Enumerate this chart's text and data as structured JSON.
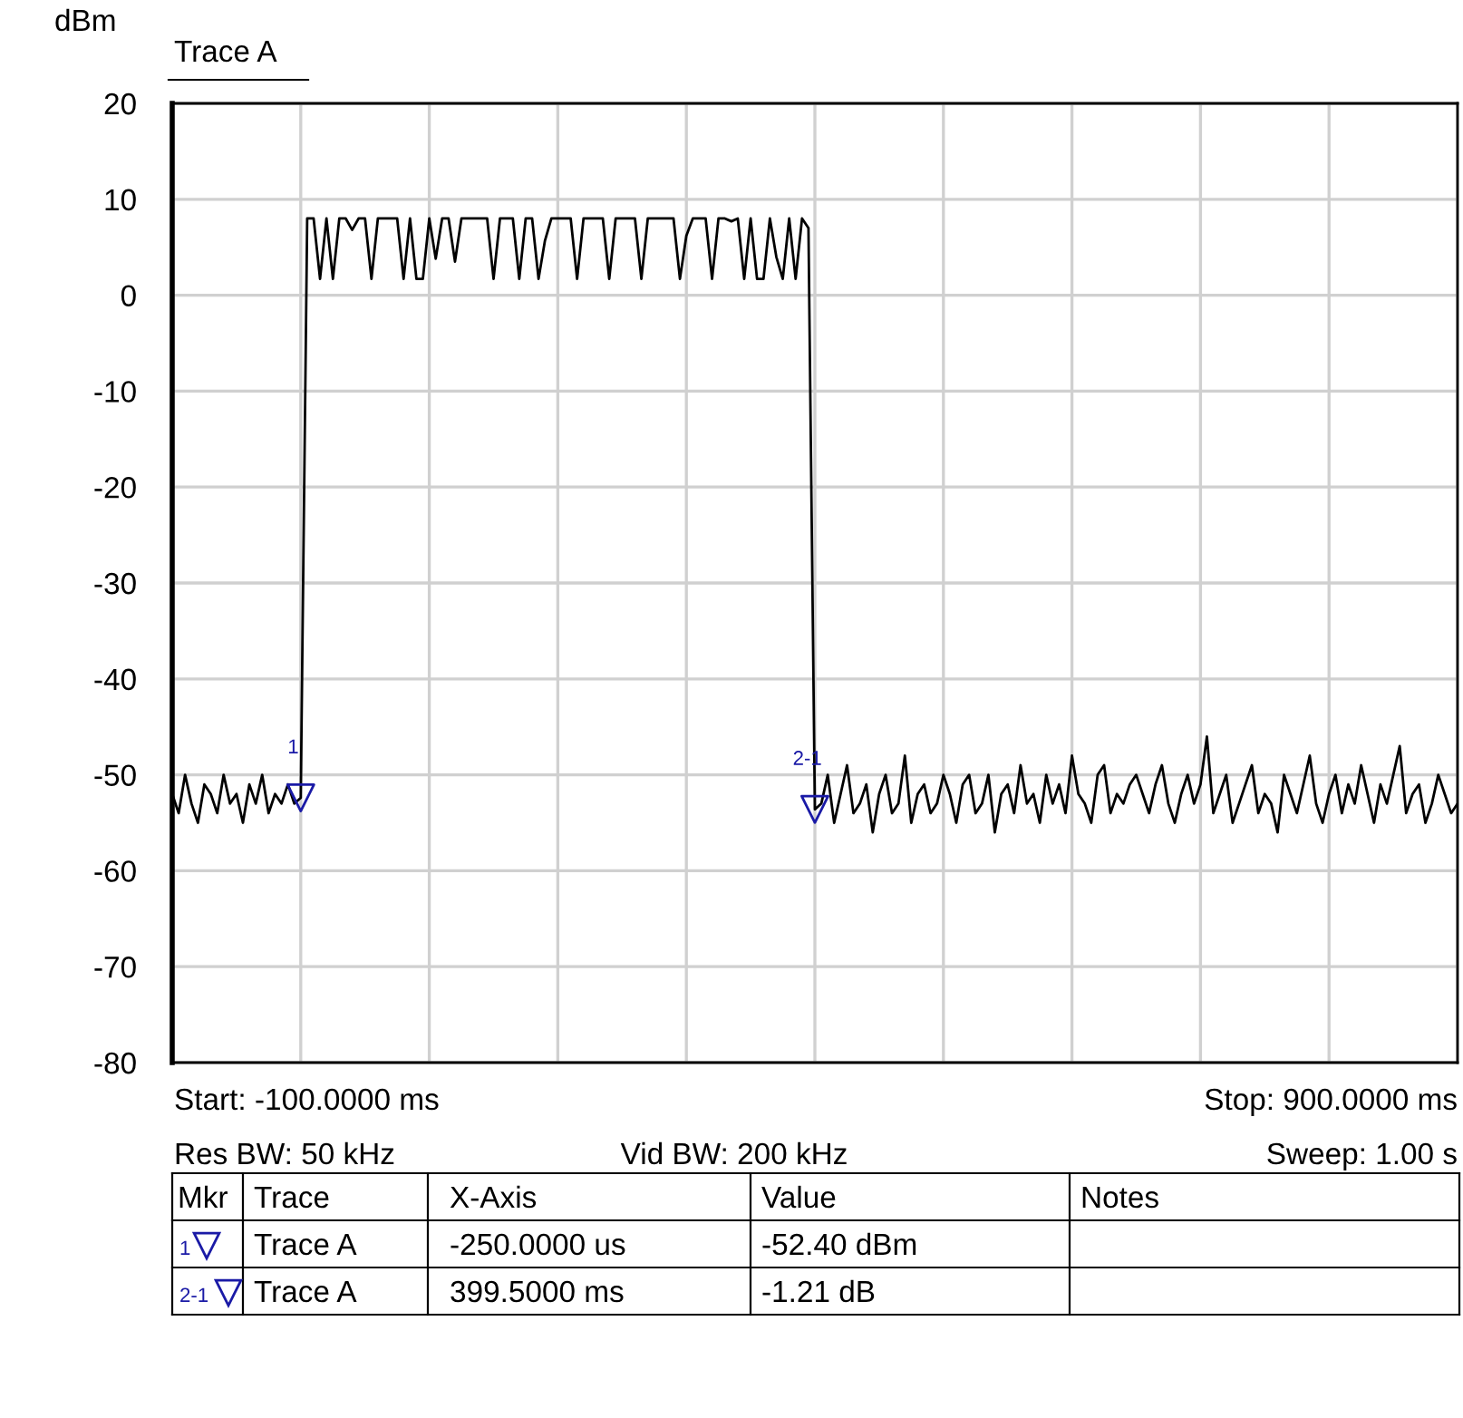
{
  "chart_data": {
    "type": "line",
    "title": "Trace A",
    "ylabel": "dBm",
    "categories": [
      null,
      null,
      null,
      null,
      null,
      null,
      null,
      null,
      null,
      null,
      null,
      null,
      null,
      null,
      null,
      null,
      null,
      null,
      null,
      null,
      null,
      null,
      null,
      null,
      null,
      null,
      null,
      null,
      null,
      null,
      null,
      null,
      null,
      null,
      null,
      null,
      null,
      null,
      null,
      null,
      null,
      null,
      null,
      null,
      null,
      null,
      null,
      null,
      null,
      null,
      null,
      null,
      null,
      null,
      null,
      null,
      null,
      null,
      null,
      null,
      null,
      null,
      null,
      null,
      null,
      null,
      null,
      null,
      null,
      null,
      null,
      null,
      null,
      null,
      null,
      null,
      null,
      null,
      null,
      null,
      null,
      null,
      null,
      null,
      null,
      null,
      null,
      null,
      null,
      null,
      null,
      null,
      null,
      null,
      null,
      null,
      null,
      null,
      null,
      null,
      null,
      null,
      null,
      null,
      null,
      null,
      null,
      null,
      null,
      null,
      null,
      null,
      null,
      null,
      null,
      null,
      null,
      null,
      null,
      null,
      null,
      null,
      null,
      null,
      null,
      null,
      null,
      null,
      null,
      null,
      null,
      null,
      null,
      null,
      null,
      null,
      null,
      null,
      null,
      null,
      null,
      null,
      null,
      null,
      null,
      null,
      null,
      null,
      null,
      null,
      null,
      null,
      null,
      null,
      null,
      null,
      null,
      null,
      null,
      null,
      null,
      null,
      null,
      null,
      null,
      null,
      null,
      null,
      null,
      null,
      null,
      null,
      null,
      null,
      null,
      null,
      null,
      null,
      null,
      null,
      null,
      null,
      null,
      null,
      null,
      null,
      null,
      null,
      null,
      null,
      null,
      null,
      null,
      null,
      null,
      null,
      null,
      null,
      null,
      null,
      null
    ],
    "ylim": [
      -80,
      20
    ],
    "yticks": [
      20,
      10,
      0,
      -10,
      -20,
      -30,
      -40,
      -50,
      -60,
      -70,
      -80
    ],
    "tick_labels": "y",
    "grid": true,
    "legend": false,
    "line_style": "solid",
    "series": [
      {
        "color": "#000000",
        "marker": "none",
        "values": [
          -52,
          -54,
          -50,
          -53,
          -55,
          -51,
          -52,
          -54,
          -50,
          -53,
          -52,
          -55,
          -51,
          -53,
          -50,
          -54,
          -52,
          -53,
          -51,
          -53,
          -52.4,
          8,
          8,
          1.7,
          8,
          1.7,
          8,
          8,
          6.8,
          8,
          8,
          1.7,
          8,
          8,
          8,
          8,
          1.7,
          8,
          1.7,
          1.7,
          8,
          3.8,
          8,
          8,
          3.5,
          8,
          8,
          8,
          8,
          8,
          1.7,
          8,
          8,
          8,
          1.7,
          8,
          8,
          1.7,
          5.7,
          8,
          8,
          8,
          8,
          1.7,
          8,
          8,
          8,
          8,
          1.7,
          8,
          8,
          8,
          8,
          1.7,
          8,
          8,
          8,
          8,
          8,
          1.7,
          6.2,
          8,
          8,
          8,
          1.7,
          8,
          8,
          7.7,
          8,
          1.7,
          8,
          1.7,
          1.7,
          8,
          4,
          1.7,
          8,
          1.7,
          8,
          7,
          -53.6,
          -53,
          -50,
          -55,
          -52,
          -49,
          -54,
          -53,
          -51,
          -56,
          -52,
          -50,
          -54,
          -53,
          -48,
          -55,
          -52,
          -51,
          -54,
          -53,
          -50,
          -52,
          -55,
          -51,
          -50,
          -54,
          -53,
          -50,
          -56,
          -52,
          -51,
          -54,
          -49,
          -53,
          -52,
          -55,
          -50,
          -53,
          -51,
          -54,
          -48,
          -52,
          -53,
          -55,
          -50,
          -49,
          -54,
          -52,
          -53,
          -51,
          -50,
          -52,
          -54,
          -51,
          -49,
          -53,
          -55,
          -52,
          -50,
          -53,
          -51,
          -46,
          -54,
          -52,
          -50,
          -55,
          -53,
          -51,
          -49,
          -54,
          -52,
          -53,
          -56,
          -50,
          -52,
          -54,
          -51,
          -48,
          -53,
          -55,
          -52,
          -50,
          -54,
          -51,
          -53,
          -49,
          -52,
          -55,
          -51,
          -53,
          -50,
          -47,
          -54,
          -52,
          -51,
          -55,
          -53,
          -50,
          -52,
          -54,
          -53
        ]
      },
      {
        "type": "scatter",
        "color": "#1a1aa6",
        "marker": "triangle",
        "values": [
          null,
          null,
          null,
          null,
          null,
          null,
          null,
          null,
          null,
          null,
          null,
          null,
          null,
          null,
          null,
          null,
          null,
          null,
          null,
          null,
          -52.4,
          null,
          null,
          null,
          null,
          null,
          null,
          null,
          null,
          null,
          null,
          null,
          null,
          null,
          null,
          null,
          null,
          null,
          null,
          null,
          null,
          null,
          null,
          null,
          null,
          null,
          null,
          null,
          null,
          null,
          null,
          null,
          null,
          null,
          null,
          null,
          null,
          null,
          null,
          null,
          null,
          null,
          null,
          null,
          null,
          null,
          null,
          null,
          null,
          null,
          null,
          null,
          null,
          null,
          null,
          null,
          null,
          null,
          null,
          null,
          null,
          null,
          null,
          null,
          null,
          null,
          null,
          null,
          null,
          null,
          null,
          null,
          null,
          null,
          null,
          null,
          null,
          null,
          null,
          null,
          -53.6,
          null,
          null,
          null,
          null,
          null,
          null,
          null,
          null,
          null,
          null,
          null,
          null,
          null,
          null,
          null,
          null,
          null,
          null,
          null,
          null,
          null,
          null,
          null,
          null,
          null,
          null,
          null,
          null,
          null,
          null,
          null,
          null,
          null,
          null,
          null,
          null,
          null,
          null,
          null,
          null,
          null,
          null,
          null,
          null,
          null,
          null,
          null,
          null,
          null,
          null,
          null,
          null,
          null,
          null,
          null,
          null,
          null,
          null,
          null,
          null,
          null,
          null,
          null,
          null,
          null,
          null,
          null,
          null,
          null,
          null,
          null,
          null,
          null,
          null,
          null,
          null,
          null,
          null,
          null,
          null,
          null,
          null,
          null,
          null,
          null,
          null,
          null,
          null,
          null,
          null,
          null,
          null,
          null,
          null,
          null,
          null,
          null,
          null,
          null,
          null
        ]
      }
    ],
    "annotations": [
      "1",
      "2-1",
      "Start: -100.0000 ms",
      "Stop: 900.0000 ms",
      "Res BW: 50 kHz",
      "Vid BW: 200 kHz",
      "Sweep: 1.00 s",
      "Mkr",
      "Trace",
      "X-Axis",
      "Value",
      "Notes",
      "1",
      "Trace A",
      "-250.0000 us",
      "-52.40 dBm",
      "2-1",
      "Trace A",
      "399.5000 ms",
      "-1.21 dB"
    ]
  }
}
